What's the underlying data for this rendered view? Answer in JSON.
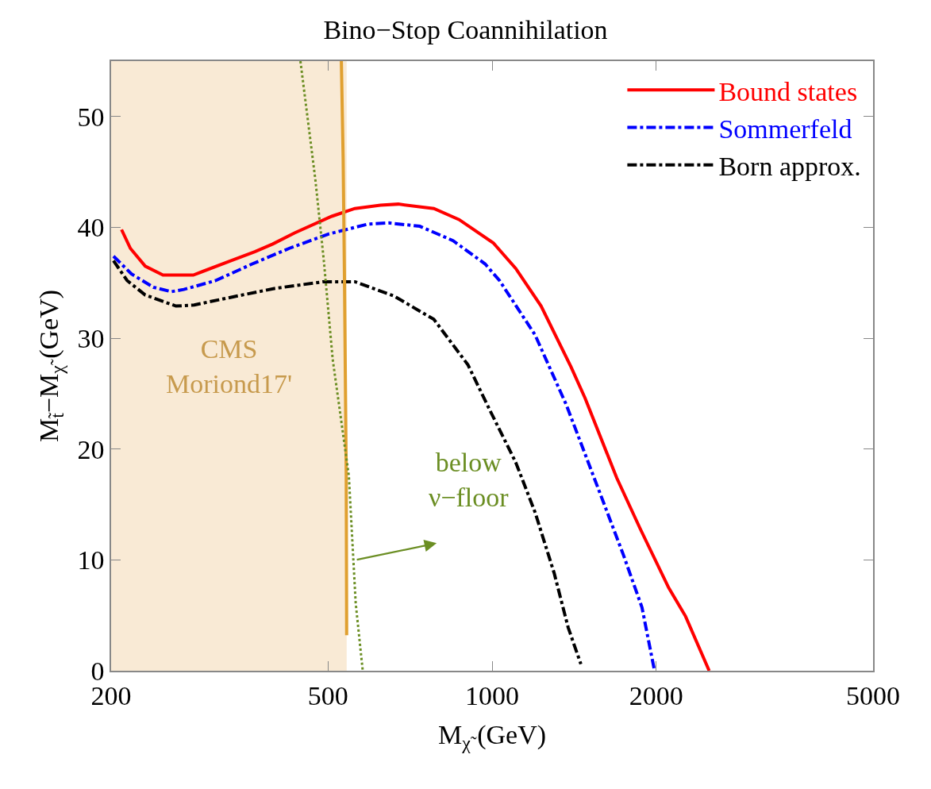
{
  "chart_data": {
    "type": "line",
    "title": "Bino−Stop Coannihilation",
    "xlabel": "M$_{χ̃}$ (GeV)",
    "ylabel": "M$_{t̃}$−M$_{χ̃}$ (GeV)",
    "log": "x",
    "xlim": [
      200,
      5000
    ],
    "xticks": [
      200,
      500,
      1000,
      2000,
      5000
    ],
    "ylim": [
      0,
      55
    ],
    "yticks": [
      0,
      10,
      20,
      30,
      40,
      50
    ],
    "grid": false,
    "legend": "top right",
    "bands": [
      {
        "axis": "x",
        "from": 200,
        "to": 541,
        "label": "CMS\nMoriond17'",
        "color": "#f9ead5"
      }
    ],
    "annotations": [
      {
        "text": "below\nν−floor",
        "x": 562,
        "y": 10
      }
    ],
    "series": [
      {
        "name": "Bound states",
        "color": "#ff0000",
        "line_style": "solid",
        "x": [
          209,
          217,
          231,
          249,
          283,
          332,
          367,
          396,
          434,
          508,
          560,
          624,
          673,
          782,
          870,
          1005,
          1105,
          1230,
          1396,
          1481,
          1693,
          1870,
          2108,
          2265,
          2502
        ],
        "values": [
          39.8,
          38.1,
          36.5,
          35.7,
          35.7,
          37.0,
          37.8,
          38.5,
          39.5,
          41.0,
          41.7,
          42.0,
          42.1,
          41.7,
          40.7,
          38.6,
          36.3,
          32.9,
          27.4,
          24.6,
          17.4,
          12.8,
          7.5,
          4.9,
          0
        ]
      },
      {
        "name": "Sommerfeld",
        "color": "#0000ff",
        "line_style": "dashed",
        "x": [
          202,
          218,
          239,
          258,
          272,
          311,
          363,
          424,
          501,
          592,
          647,
          737,
          848,
          971,
          1032,
          1199,
          1368,
          1564,
          1740,
          1884,
          1986
        ],
        "values": [
          37.4,
          35.8,
          34.6,
          34.2,
          34.4,
          35.2,
          36.7,
          38.1,
          39.4,
          40.3,
          40.4,
          40.1,
          38.8,
          36.7,
          35.2,
          30.3,
          24.0,
          16.5,
          10.5,
          5.7,
          0
        ]
      },
      {
        "name": "Born approx.",
        "color": "#000000",
        "line_style": "dashed",
        "x": [
          202,
          214,
          231,
          263,
          284,
          340,
          400,
          491,
          560,
          661,
          782,
          903,
          993,
          1105,
          1199,
          1300,
          1379,
          1455
        ],
        "values": [
          37.0,
          35.2,
          33.9,
          32.9,
          33.0,
          33.8,
          34.5,
          35.1,
          35.1,
          33.8,
          31.7,
          27.6,
          23.4,
          18.8,
          14.3,
          8.8,
          3.9,
          0.6
        ]
      },
      {
        "color": "#e0a030",
        "line_style": "solid",
        "x": [
          529,
          533,
          536,
          540,
          541
        ],
        "values": [
          55,
          46.2,
          35.5,
          17.6,
          3.2
        ]
      },
      {
        "color": "#6b8e23",
        "line_style": "dotted",
        "x": [
          445,
          474,
          491,
          510,
          546,
          562,
          579
        ],
        "values": [
          55,
          44.3,
          37.1,
          28.1,
          17.6,
          6.1,
          0
        ]
      }
    ]
  }
}
